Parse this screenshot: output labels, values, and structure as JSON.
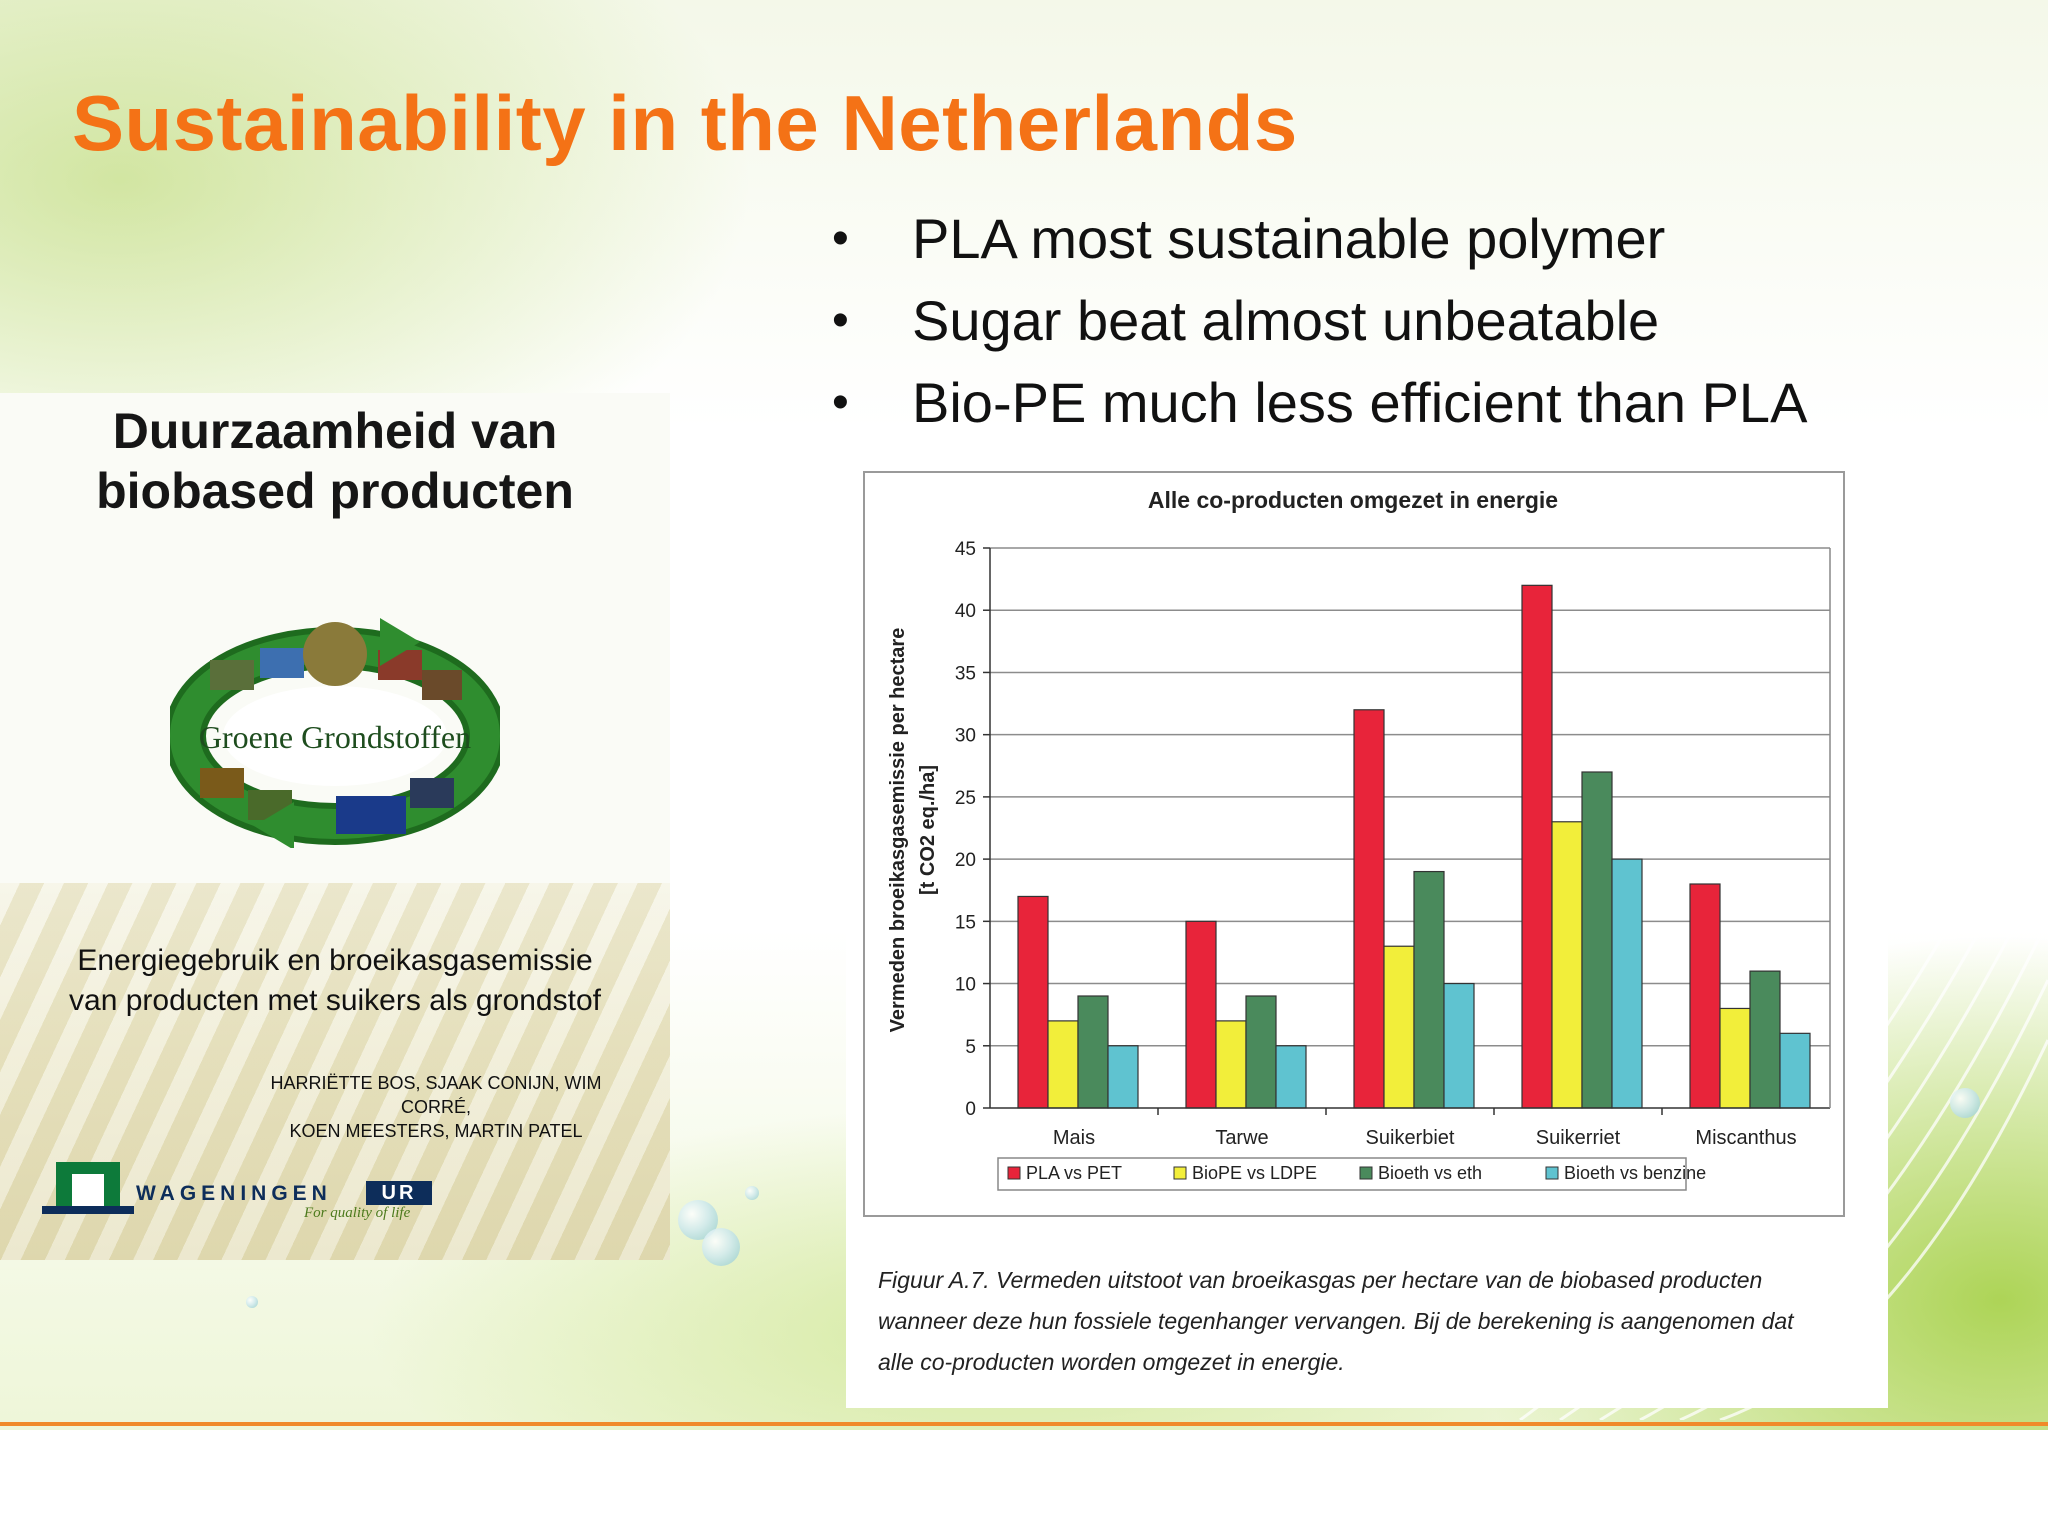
{
  "slide": {
    "title": "Sustainability in the Netherlands",
    "bullets": [
      "PLA most sustainable polymer",
      "Sugar beat almost unbeatable",
      "Bio-PE much less efficient than PLA"
    ]
  },
  "cover": {
    "title_line1": "Duurzaamheid van",
    "title_line2": "biobased producten",
    "emblem_text": "Groene Grondstoffen",
    "subtitle_line1": "Energiegebruik en broeikasgasemissie",
    "subtitle_line2": "van producten met suikers als grondstof",
    "authors_line1": "HARRIËTTE BOS, SJAAK CONIJN, WIM CORRÉ,",
    "authors_line2": "KOEN MEESTERS, MARTIN PATEL",
    "logo_name": "WAGENINGEN",
    "logo_suffix": "UR",
    "logo_tagline": "For quality of life"
  },
  "figure": {
    "caption_line1": "Figuur A.7. Vermeden uitstoot van broeikasgas per hectare van de biobased producten",
    "caption_line2": "wanneer deze hun fossiele tegenhanger vervangen. Bij de berekening is aangenomen dat",
    "caption_line3": "alle co-producten worden omgezet in energie."
  },
  "chart_data": {
    "type": "bar",
    "title": "Alle co-producten omgezet in energie",
    "ylabel_line1": "Vermeden broeikasgasemissie per hectare",
    "ylabel_line2": "[t CO2 eq./ha]",
    "xlabel": "",
    "ylim": [
      0,
      45
    ],
    "yticks": [
      0,
      5,
      10,
      15,
      20,
      25,
      30,
      35,
      40,
      45
    ],
    "grid": true,
    "legend_position": "bottom",
    "categories": [
      "Mais",
      "Tarwe",
      "Suikerbiet",
      "Suikerriet",
      "Miscanthus"
    ],
    "series": [
      {
        "name": "PLA vs PET",
        "color": "#e8243a",
        "values": [
          17,
          15,
          32,
          42,
          18
        ]
      },
      {
        "name": "BioPE vs LDPE",
        "color": "#f2ee3a",
        "values": [
          7,
          7,
          13,
          23,
          8
        ]
      },
      {
        "name": "Bioeth vs eth",
        "color": "#4a8a5c",
        "values": [
          9,
          9,
          19,
          27,
          11
        ]
      },
      {
        "name": "Bioeth vs benzine",
        "color": "#5fc3d0",
        "values": [
          5,
          5,
          10,
          20,
          6
        ]
      }
    ]
  },
  "colors": {
    "title": "#f47216",
    "accent_line": "#f08a2a"
  }
}
